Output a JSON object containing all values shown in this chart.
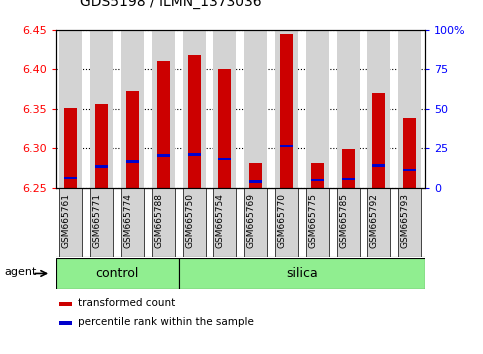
{
  "title": "GDS5198 / ILMN_1373036",
  "samples": [
    "GSM665761",
    "GSM665771",
    "GSM665774",
    "GSM665788",
    "GSM665750",
    "GSM665754",
    "GSM665769",
    "GSM665770",
    "GSM665775",
    "GSM665785",
    "GSM665792",
    "GSM665793"
  ],
  "groups": [
    "control",
    "control",
    "control",
    "control",
    "silica",
    "silica",
    "silica",
    "silica",
    "silica",
    "silica",
    "silica",
    "silica"
  ],
  "red_values": [
    6.351,
    6.356,
    6.373,
    6.411,
    6.418,
    6.401,
    6.281,
    6.445,
    6.281,
    6.299,
    6.37,
    6.338
  ],
  "blue_values": [
    6.262,
    6.277,
    6.283,
    6.291,
    6.292,
    6.286,
    6.258,
    6.303,
    6.26,
    6.261,
    6.278,
    6.272
  ],
  "ylim_left": [
    6.25,
    6.45
  ],
  "ylim_right": [
    0,
    100
  ],
  "yticks_left": [
    6.25,
    6.3,
    6.35,
    6.4,
    6.45
  ],
  "yticks_right": [
    0,
    25,
    50,
    75,
    100
  ],
  "ytick_labels_right": [
    "0",
    "25",
    "50",
    "75",
    "100%"
  ],
  "bar_bg_color": "#D3D3D3",
  "red_bar_color": "#CC0000",
  "blue_bar_color": "#0000CC",
  "green_color": "#90EE90",
  "base_value": 6.25,
  "agent_label": "agent",
  "legend_red": "transformed count",
  "legend_blue": "percentile rank within the sample",
  "control_count": 4,
  "silica_count": 8
}
